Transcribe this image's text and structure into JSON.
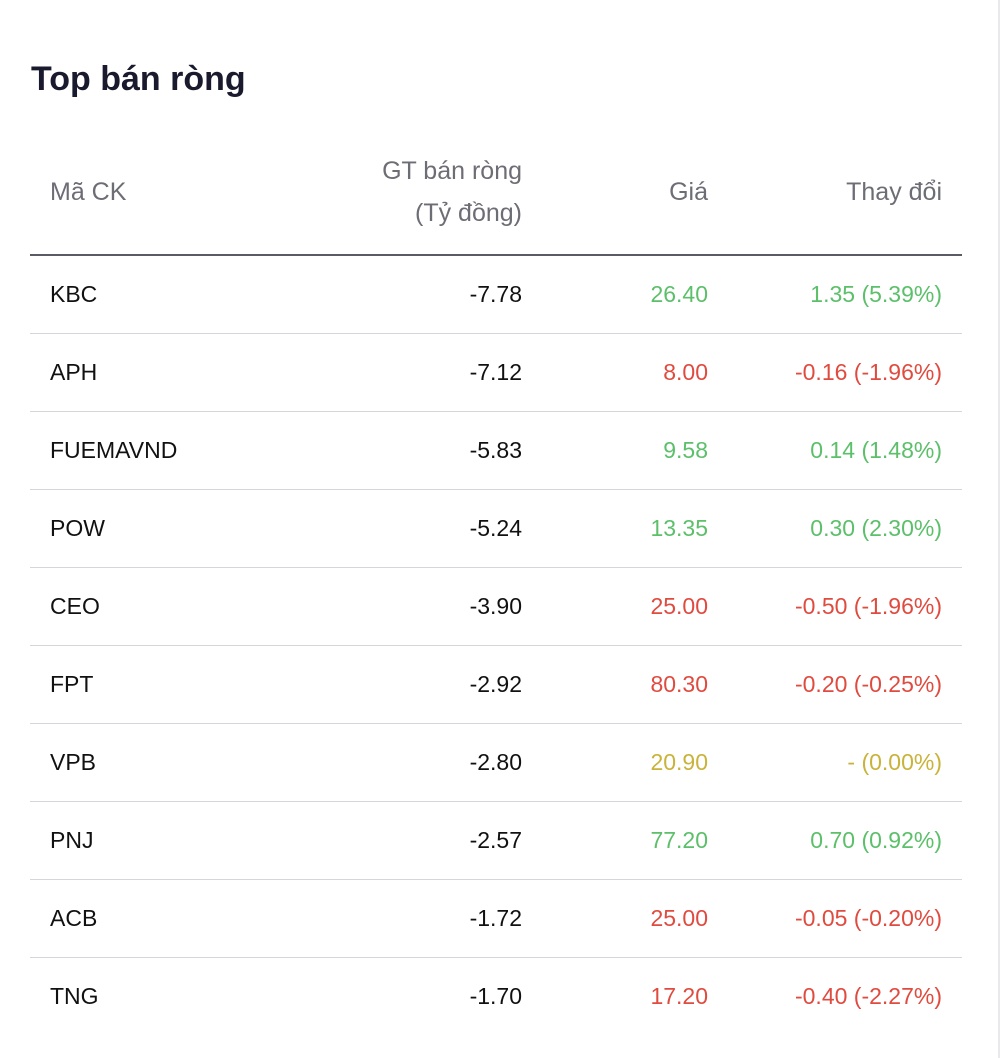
{
  "title": "Top bán ròng",
  "columns": {
    "code": "Mã CK",
    "value_line1": "GT bán ròng",
    "value_line2": "(Tỷ đồng)",
    "price": "Giá",
    "change": "Thay đổi"
  },
  "colors": {
    "up": "#5cbf6a",
    "down": "#e04b3f",
    "reference": "#c9b33a"
  },
  "rows": [
    {
      "code": "KBC",
      "value": "-7.78",
      "price": "26.40",
      "change": "1.35 (5.39%)",
      "trend": "up"
    },
    {
      "code": "APH",
      "value": "-7.12",
      "price": "8.00",
      "change": "-0.16 (-1.96%)",
      "trend": "down"
    },
    {
      "code": "FUEMAVND",
      "value": "-5.83",
      "price": "9.58",
      "change": "0.14 (1.48%)",
      "trend": "up"
    },
    {
      "code": "POW",
      "value": "-5.24",
      "price": "13.35",
      "change": "0.30 (2.30%)",
      "trend": "up"
    },
    {
      "code": "CEO",
      "value": "-3.90",
      "price": "25.00",
      "change": "-0.50 (-1.96%)",
      "trend": "down"
    },
    {
      "code": "FPT",
      "value": "-2.92",
      "price": "80.30",
      "change": "-0.20 (-0.25%)",
      "trend": "down"
    },
    {
      "code": "VPB",
      "value": "-2.80",
      "price": "20.90",
      "change": "- (0.00%)",
      "trend": "ref"
    },
    {
      "code": "PNJ",
      "value": "-2.57",
      "price": "77.20",
      "change": "0.70 (0.92%)",
      "trend": "up"
    },
    {
      "code": "ACB",
      "value": "-1.72",
      "price": "25.00",
      "change": "-0.05 (-0.20%)",
      "trend": "down"
    },
    {
      "code": "TNG",
      "value": "-1.70",
      "price": "17.20",
      "change": "-0.40 (-2.27%)",
      "trend": "down"
    }
  ]
}
